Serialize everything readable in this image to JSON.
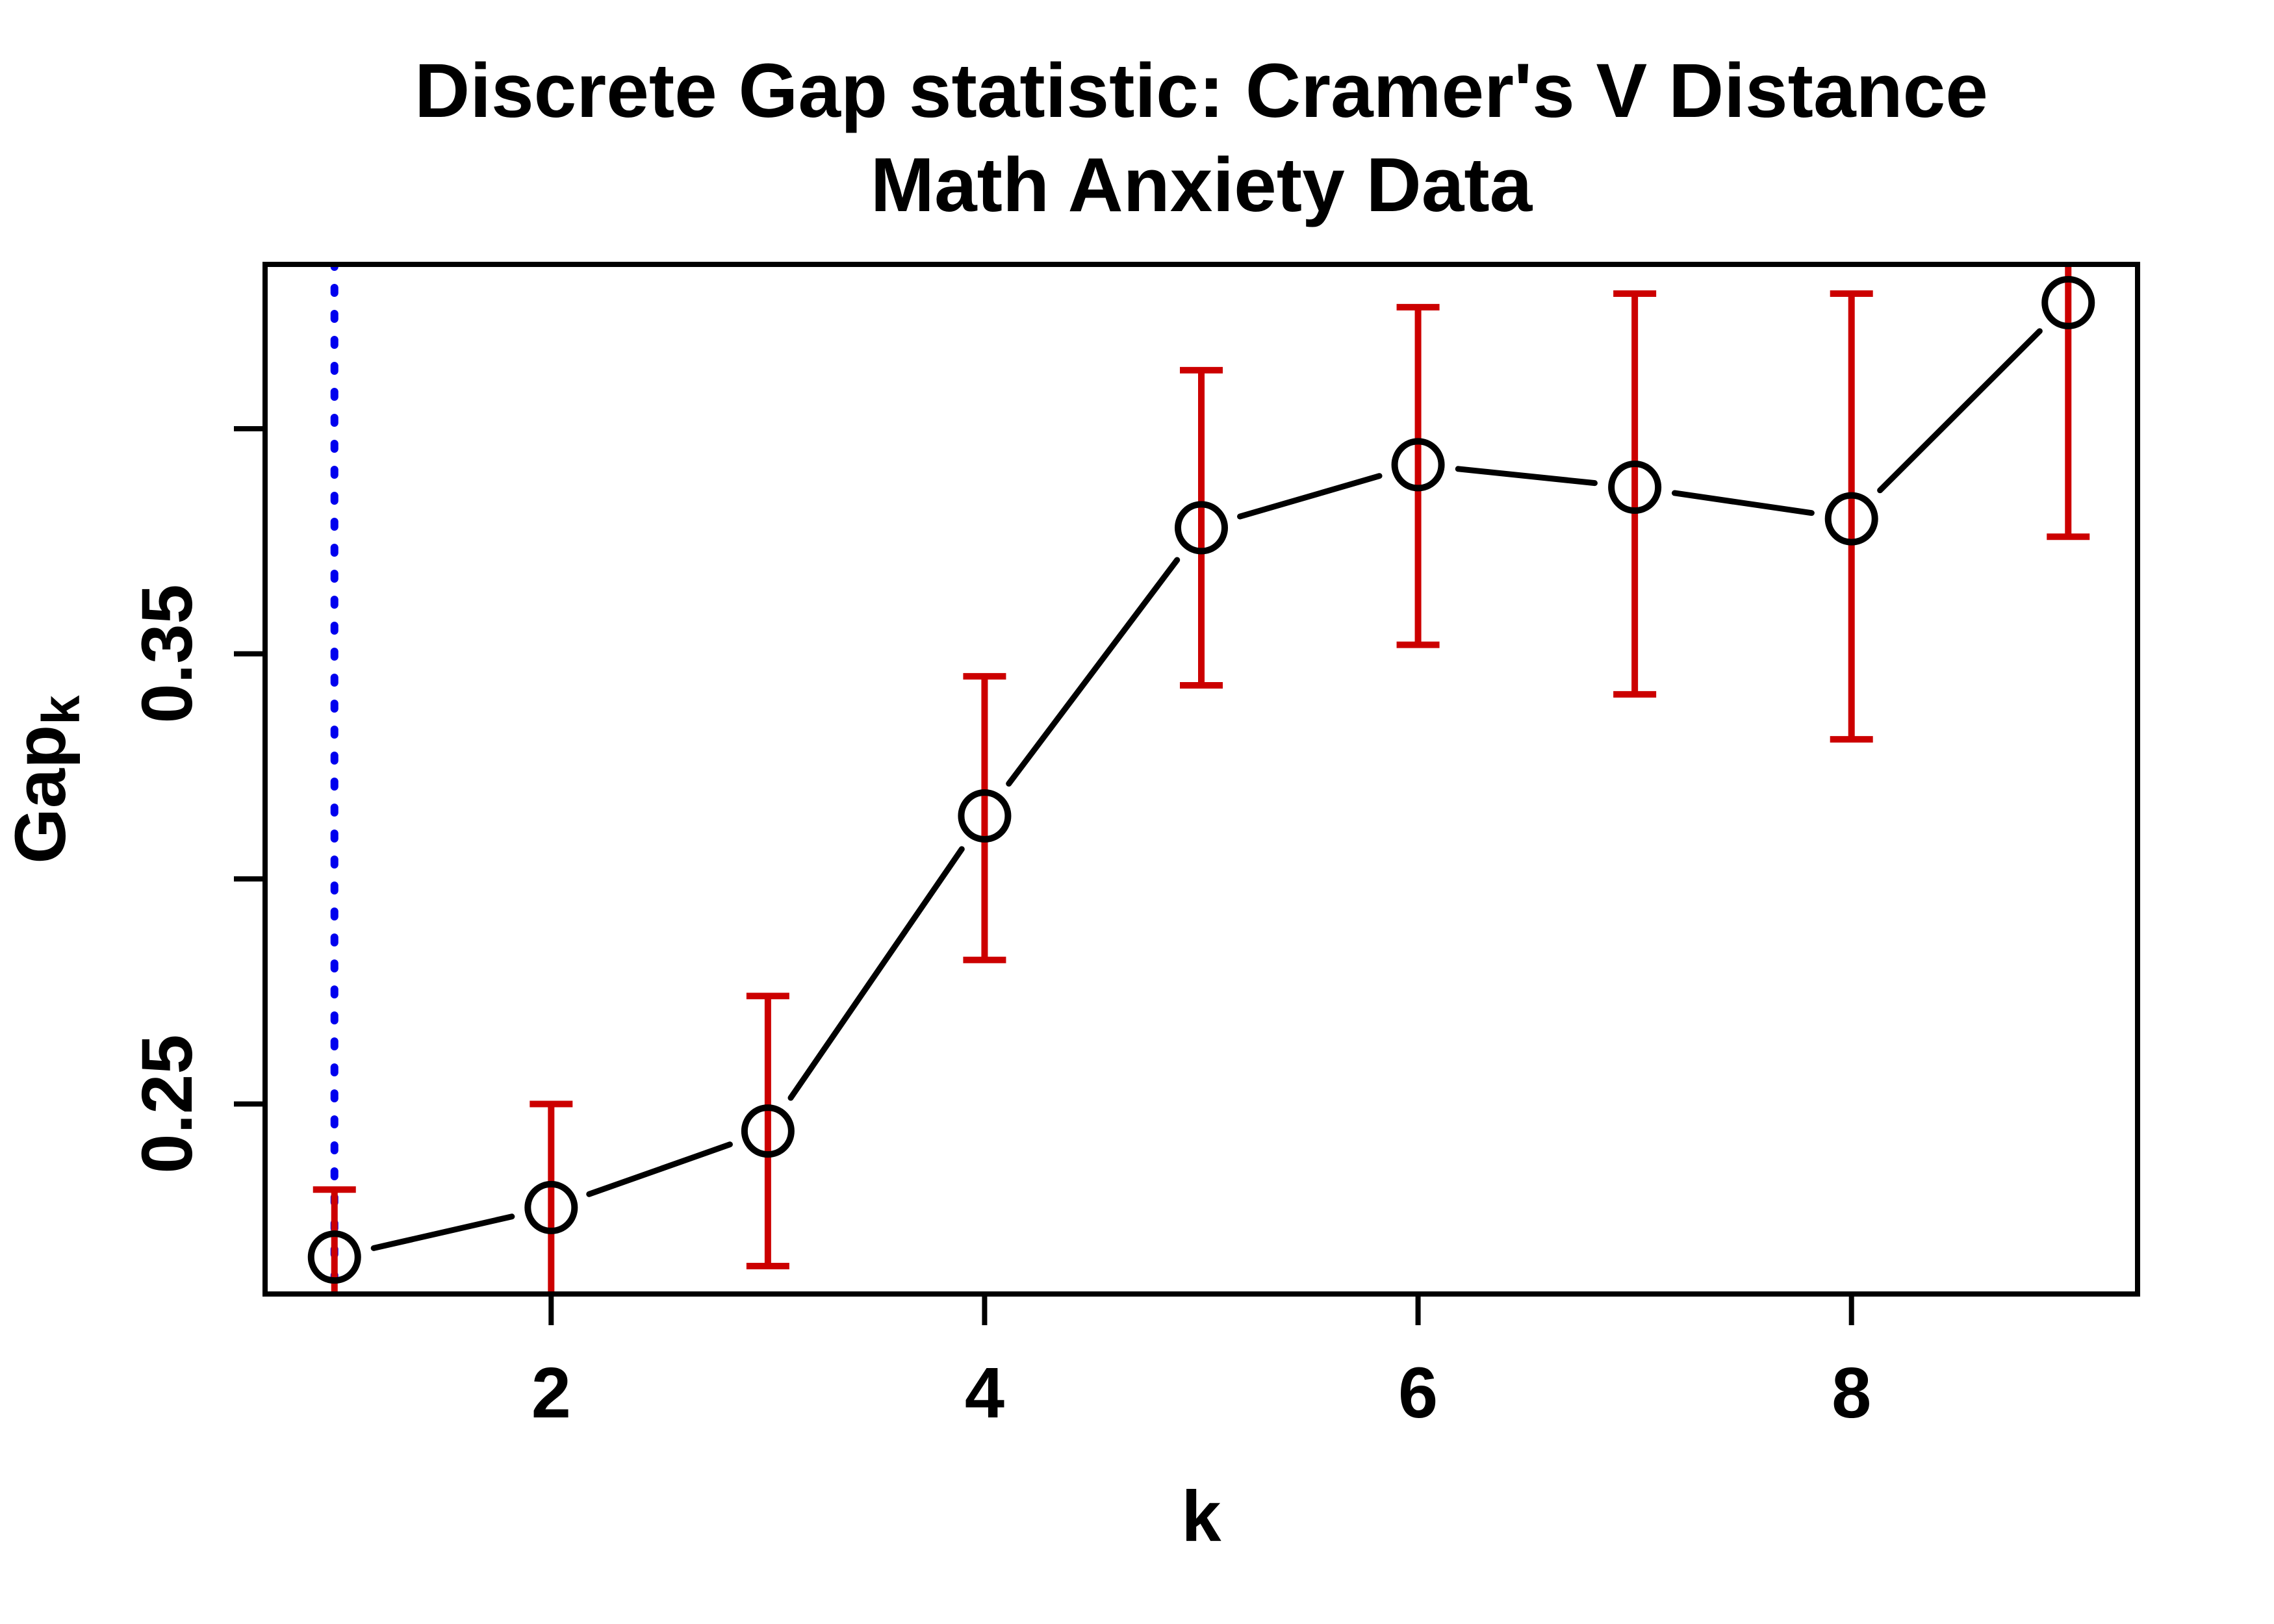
{
  "title": {
    "line1": "Discrete Gap statistic: Cramer's V Distance",
    "line2": "Math Anxiety Data"
  },
  "axes": {
    "x": {
      "label": "k",
      "tick_labels": [
        "2",
        "4",
        "6",
        "8"
      ]
    },
    "y": {
      "label_main": "Gap",
      "label_sub": "k",
      "tick_labels": [
        "0.25",
        "",
        "0.35",
        ""
      ]
    }
  },
  "chart_data": {
    "type": "line",
    "title": "Discrete Gap statistic: Cramer's V Distance",
    "subtitle": "Math Anxiety Data",
    "xlabel": "k",
    "ylabel": "Gap_k",
    "ylabel_main": "Gap",
    "ylabel_sub": "k",
    "marker": "open-circle",
    "grid": false,
    "legend": "none",
    "x": [
      1,
      2,
      3,
      4,
      5,
      6,
      7,
      8,
      9
    ],
    "series": [
      {
        "name": "Gap_k",
        "values": [
          0.216,
          0.227,
          0.244,
          0.314,
          0.378,
          0.392,
          0.387,
          0.38,
          0.428
        ]
      }
    ],
    "error_upper": [
      0.231,
      0.25,
      0.274,
      0.345,
      0.413,
      0.427,
      0.43,
      0.43,
      0.445
    ],
    "error_lower": [
      0.202,
      0.196,
      0.214,
      0.282,
      0.343,
      0.352,
      0.341,
      0.331,
      0.376
    ],
    "error_bar_note": "red error bars; whiskers clipped at plot-region edges (k=1,2 lower ends and k=9 upper end run off the axes)",
    "vline": {
      "x": 1,
      "style": "dotted",
      "color": "#0000EE",
      "meaning": "vertical dotted reference line at k = 1"
    },
    "xlim": [
      0.68,
      9.32
    ],
    "ylim": [
      0.2078,
      0.4365
    ],
    "x_ticks": [
      2,
      4,
      6,
      8
    ],
    "y_ticks": [
      0.25,
      0.3,
      0.35,
      0.4
    ],
    "y_tick_labels": [
      "0.25",
      "",
      "0.35",
      ""
    ],
    "colors": {
      "line": "#000000",
      "marker": "#000000",
      "error_bars": "#CC0000",
      "vline": "#0000EE",
      "background": "#FFFFFF"
    }
  }
}
